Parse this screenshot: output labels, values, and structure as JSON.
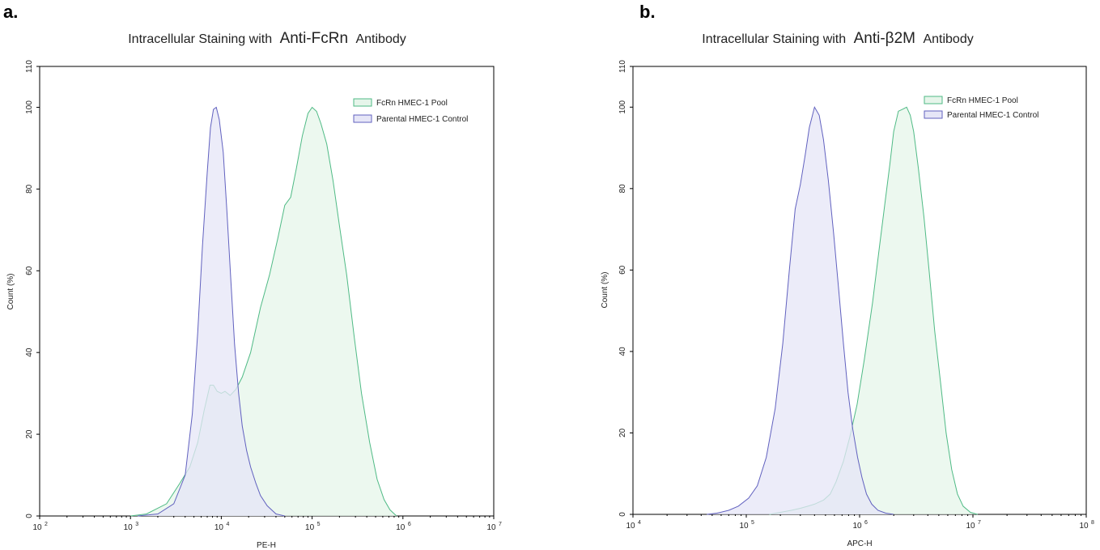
{
  "chart_data": [
    {
      "type": "area",
      "panel_label": "a.",
      "title_prefix": "Intracellular Staining with",
      "title_highlight": "Anti-FcRn",
      "title_suffix": "Antibody",
      "xlabel": "PE-H",
      "ylabel": "Count (%)",
      "x_scale": "log",
      "xlim": [
        100,
        10000000
      ],
      "ylim": [
        0,
        110
      ],
      "x_ticks": [
        {
          "base": "10",
          "exp": "2"
        },
        {
          "base": "10",
          "exp": "3"
        },
        {
          "base": "10",
          "exp": "4"
        },
        {
          "base": "10",
          "exp": "5"
        },
        {
          "base": "10",
          "exp": "6"
        },
        {
          "base": "10",
          "exp": "7"
        }
      ],
      "y_ticks": [
        "0",
        "20",
        "40",
        "60",
        "80",
        "100",
        "110"
      ],
      "legend_position": "top-right",
      "series": [
        {
          "name": "FcRn HMEC-1 Pool",
          "fill": "#e6f5ea",
          "stroke": "#4fba85",
          "points": [
            [
              1000,
              0
            ],
            [
              1500,
              0.5
            ],
            [
              2500,
              3
            ],
            [
              3500,
              8
            ],
            [
              4500,
              12
            ],
            [
              5500,
              18
            ],
            [
              6500,
              26
            ],
            [
              7500,
              32
            ],
            [
              8200,
              32
            ],
            [
              9000,
              30.5
            ],
            [
              10000,
              30
            ],
            [
              11000,
              30.5
            ],
            [
              12500,
              29.5
            ],
            [
              14500,
              31
            ],
            [
              17000,
              34
            ],
            [
              21000,
              40
            ],
            [
              27000,
              51
            ],
            [
              34000,
              59
            ],
            [
              42000,
              68
            ],
            [
              50000,
              76
            ],
            [
              58000,
              78
            ],
            [
              67000,
              85
            ],
            [
              78000,
              93
            ],
            [
              90000,
              98.5
            ],
            [
              100000,
              100
            ],
            [
              112000,
              99
            ],
            [
              125000,
              96
            ],
            [
              145000,
              91
            ],
            [
              170000,
              82
            ],
            [
              200000,
              71
            ],
            [
              240000,
              59
            ],
            [
              290000,
              44
            ],
            [
              350000,
              30
            ],
            [
              430000,
              18
            ],
            [
              520000,
              9
            ],
            [
              620000,
              4
            ],
            [
              720000,
              1.5
            ],
            [
              850000,
              0
            ]
          ]
        },
        {
          "name": "Parental HMEC-1 Control",
          "fill": "#e6e6f7",
          "stroke": "#6161bf",
          "points": [
            [
              1200,
              0
            ],
            [
              2000,
              0.5
            ],
            [
              3000,
              3
            ],
            [
              4000,
              10
            ],
            [
              4800,
              25
            ],
            [
              5500,
              45
            ],
            [
              6200,
              66
            ],
            [
              7000,
              84
            ],
            [
              7600,
              95
            ],
            [
              8200,
              99.5
            ],
            [
              8800,
              100
            ],
            [
              9500,
              97
            ],
            [
              10500,
              89
            ],
            [
              11500,
              75
            ],
            [
              12800,
              57
            ],
            [
              14000,
              42
            ],
            [
              15500,
              30
            ],
            [
              17000,
              22
            ],
            [
              19000,
              16
            ],
            [
              21000,
              12
            ],
            [
              24000,
              8
            ],
            [
              27000,
              5
            ],
            [
              32000,
              2.5
            ],
            [
              40000,
              0.5
            ],
            [
              50000,
              0
            ]
          ]
        }
      ]
    },
    {
      "type": "area",
      "panel_label": "b.",
      "title_prefix": "Intracellular Staining with",
      "title_highlight": "Anti-β2M",
      "title_suffix": "Antibody",
      "xlabel": "APC-H",
      "ylabel": "Count (%)",
      "x_scale": "log",
      "xlim": [
        10000,
        100000000
      ],
      "ylim": [
        0,
        110
      ],
      "x_ticks": [
        {
          "base": "10",
          "exp": "4"
        },
        {
          "base": "10",
          "exp": "5"
        },
        {
          "base": "10",
          "exp": "6"
        },
        {
          "base": "10",
          "exp": "7"
        },
        {
          "base": "10",
          "exp": "8"
        }
      ],
      "y_ticks": [
        "0",
        "20",
        "40",
        "60",
        "80",
        "100",
        "110"
      ],
      "legend_position": "top-right",
      "series": [
        {
          "name": "FcRn HMEC-1 Pool",
          "fill": "#e6f5ea",
          "stroke": "#4fba85",
          "points": [
            [
              160000,
              0
            ],
            [
              200000,
              0.5
            ],
            [
              250000,
              1
            ],
            [
              300000,
              1.5
            ],
            [
              350000,
              2
            ],
            [
              400000,
              2.5
            ],
            [
              480000,
              3.5
            ],
            [
              550000,
              5
            ],
            [
              620000,
              8
            ],
            [
              720000,
              13
            ],
            [
              820000,
              19
            ],
            [
              950000,
              27
            ],
            [
              1100000,
              38
            ],
            [
              1300000,
              52
            ],
            [
              1500000,
              66
            ],
            [
              1700000,
              78
            ],
            [
              1850000,
              86
            ],
            [
              2000000,
              94
            ],
            [
              2200000,
              99
            ],
            [
              2400000,
              99.5
            ],
            [
              2600000,
              100
            ],
            [
              2800000,
              98
            ],
            [
              3000000,
              94
            ],
            [
              3300000,
              85
            ],
            [
              3700000,
              73
            ],
            [
              4100000,
              60
            ],
            [
              4600000,
              45
            ],
            [
              5200000,
              32
            ],
            [
              5800000,
              20
            ],
            [
              6500000,
              11
            ],
            [
              7300000,
              5
            ],
            [
              8200000,
              2
            ],
            [
              9500000,
              0.5
            ],
            [
              11000000,
              0
            ]
          ]
        },
        {
          "name": "Parental HMEC-1 Control",
          "fill": "#e6e6f7",
          "stroke": "#6161bf",
          "points": [
            [
              45000,
              0
            ],
            [
              55000,
              0.3
            ],
            [
              70000,
              1
            ],
            [
              85000,
              2
            ],
            [
              105000,
              4
            ],
            [
              125000,
              7
            ],
            [
              150000,
              14
            ],
            [
              180000,
              26
            ],
            [
              210000,
              42
            ],
            [
              240000,
              60
            ],
            [
              270000,
              75
            ],
            [
              300000,
              81
            ],
            [
              330000,
              88
            ],
            [
              360000,
              95
            ],
            [
              400000,
              100
            ],
            [
              440000,
              98
            ],
            [
              480000,
              92
            ],
            [
              530000,
              82
            ],
            [
              590000,
              69
            ],
            [
              650000,
              56
            ],
            [
              720000,
              42
            ],
            [
              790000,
              30
            ],
            [
              870000,
              21
            ],
            [
              960000,
              14
            ],
            [
              1050000,
              9
            ],
            [
              1150000,
              5
            ],
            [
              1280000,
              2.5
            ],
            [
              1450000,
              1
            ],
            [
              1700000,
              0.3
            ],
            [
              2000000,
              0
            ]
          ]
        }
      ]
    }
  ]
}
